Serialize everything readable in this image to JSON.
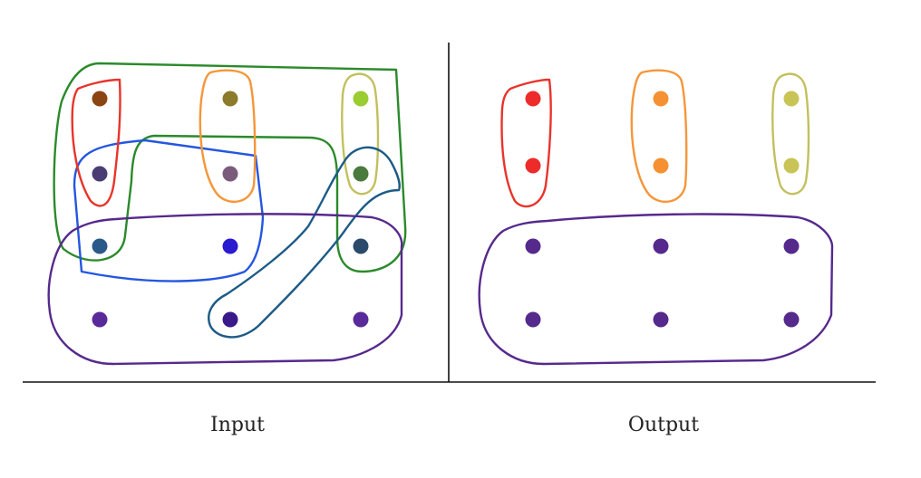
{
  "labels": {
    "input": "Input",
    "output": "Output"
  },
  "colors": {
    "axis": "#111111",
    "red": "#e8342b",
    "orange": "#f5963a",
    "olive": "#c2c05e",
    "green": "#2b8a2b",
    "blue": "#2456e0",
    "teal": "#1d5b86",
    "purple": "#56298c"
  },
  "input_panel": {
    "dots": [
      {
        "name": "dot-r1c1",
        "color": "#8b4513"
      },
      {
        "name": "dot-r1c2",
        "color": "#8b7b2b"
      },
      {
        "name": "dot-r1c3",
        "color": "#9acd32"
      },
      {
        "name": "dot-r2c1",
        "color": "#4a3d73"
      },
      {
        "name": "dot-r2c2",
        "color": "#7b5b7b"
      },
      {
        "name": "dot-r2c3",
        "color": "#4a7a3d"
      },
      {
        "name": "dot-r3c1",
        "color": "#2a5a8a"
      },
      {
        "name": "dot-r3c2",
        "color": "#2a1ad0"
      },
      {
        "name": "dot-r3c3",
        "color": "#2c4a6a"
      },
      {
        "name": "dot-r4c1",
        "color": "#5a2a9a"
      },
      {
        "name": "dot-r4c2",
        "color": "#3a1a8a"
      },
      {
        "name": "dot-r4c3",
        "color": "#5a2a9a"
      }
    ]
  },
  "output_panel": {
    "dots": [
      {
        "name": "dot-r1c1",
        "color": "#ee2b2b"
      },
      {
        "name": "dot-r1c2",
        "color": "#f59132"
      },
      {
        "name": "dot-r1c3",
        "color": "#c8c456"
      },
      {
        "name": "dot-r2c1",
        "color": "#ee2b2b"
      },
      {
        "name": "dot-r2c2",
        "color": "#f59132"
      },
      {
        "name": "dot-r2c3",
        "color": "#c8c456"
      },
      {
        "name": "dot-r3c1",
        "color": "#56298c"
      },
      {
        "name": "dot-r3c2",
        "color": "#56298c"
      },
      {
        "name": "dot-r3c3",
        "color": "#56298c"
      },
      {
        "name": "dot-r4c1",
        "color": "#56298c"
      },
      {
        "name": "dot-r4c2",
        "color": "#56298c"
      },
      {
        "name": "dot-r4c3",
        "color": "#56298c"
      }
    ]
  }
}
